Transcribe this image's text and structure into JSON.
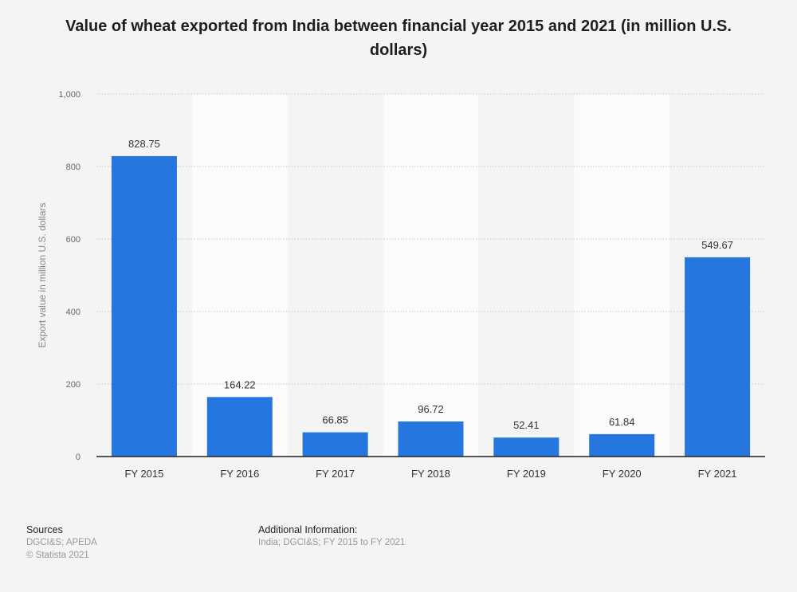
{
  "title": "Value of wheat exported from India between financial year 2015 and 2021 (in million U.S. dollars)",
  "chart_data": {
    "type": "bar",
    "categories": [
      "FY 2015",
      "FY 2016",
      "FY 2017",
      "FY 2018",
      "FY 2019",
      "FY 2020",
      "FY 2021"
    ],
    "values": [
      828.75,
      164.22,
      66.85,
      96.72,
      52.41,
      61.84,
      549.67
    ],
    "value_labels": [
      "828.75",
      "164.22",
      "66.85",
      "96.72",
      "52.41",
      "61.84",
      "549.67"
    ],
    "ylabel": "Export value in million U.S. dollars",
    "ylim": [
      0,
      1000
    ],
    "yticks": [
      0,
      200,
      400,
      600,
      800,
      1000
    ],
    "ytick_labels": [
      "0",
      "200",
      "400",
      "600",
      "800",
      "1,000"
    ],
    "grid": true,
    "bar_color": "#2676e0"
  },
  "footer": {
    "sources_label": "Sources",
    "sources_text": "DGCI&S; APEDA",
    "copyright": "© Statista 2021",
    "additional_label": "Additional Information:",
    "additional_text": "India; DGCI&S; FY 2015 to FY 2021"
  }
}
